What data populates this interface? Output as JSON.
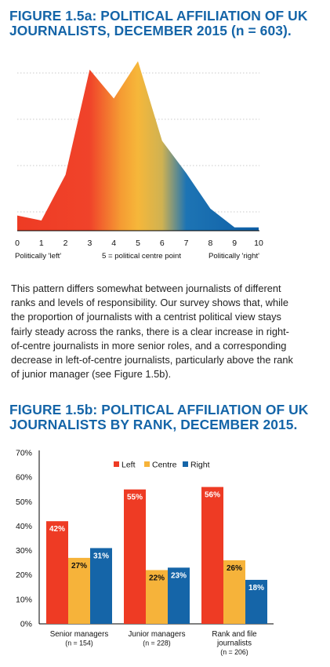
{
  "figure_a": {
    "title_lines": [
      "FIGURE 1.5a: POLITICAL AFFILIATION OF UK",
      "JOURNALISTS, DECEMBER 2015 (n = 603)."
    ],
    "axis_label_left": "Politically 'left'",
    "axis_label_centre": "5 = political centre point",
    "axis_label_right": "Politically 'right'",
    "colors": {
      "left": "#ee3b24",
      "centre": "#f6b33a",
      "right": "#1565a8"
    }
  },
  "paragraph_lines": [
    "This pattern differs somewhat between journalists of different",
    "ranks and levels of responsibility. Our survey shows that, while",
    "the proportion of journalists with a centrist political view stays",
    "fairly steady across the ranks, there is a clear increase in right-",
    "of-centre journalists in more senior roles, and a corresponding",
    "decrease in left-of-centre journalists, particularly above the rank",
    "of junior manager (see Figure 1.5b)."
  ],
  "figure_b": {
    "title_lines": [
      "FIGURE 1.5b: POLITICAL AFFILIATION OF UK",
      "JOURNALISTS BY RANK, DECEMBER 2015."
    ]
  },
  "chart_data": [
    {
      "type": "area",
      "title": "FIGURE 1.5a: POLITICAL AFFILIATION OF UK JOURNALISTS, DECEMBER 2015 (n = 603).",
      "x": [
        0,
        1,
        2,
        3,
        4,
        5,
        6,
        7,
        8,
        9,
        10
      ],
      "x_tick_labels": [
        "0",
        "1",
        "2",
        "3",
        "4",
        "5",
        "6",
        "7",
        "8",
        "9",
        "10"
      ],
      "y_relative": [
        0.09,
        0.06,
        0.33,
        0.95,
        0.78,
        1.0,
        0.53,
        0.34,
        0.13,
        0.02,
        0.02
      ],
      "y_axis_labels_shown": false,
      "grid": "horizontal dotted",
      "color_gradient": [
        "#ee3b24",
        "#f6b33a",
        "#1565a8"
      ]
    },
    {
      "type": "bar",
      "title": "FIGURE 1.5b: POLITICAL AFFILIATION OF UK JOURNALISTS BY RANK, DECEMBER 2015.",
      "categories": [
        [
          "Senior managers",
          "(n = 154)"
        ],
        [
          "Junior managers",
          "(n = 228)"
        ],
        [
          "Rank and file",
          "journalists",
          "(n = 206)"
        ]
      ],
      "series": [
        {
          "name": "Left",
          "color": "#ee3b24",
          "values": [
            42,
            55,
            56
          ],
          "labels": [
            "42%",
            "55%",
            "56%"
          ]
        },
        {
          "name": "Centre",
          "color": "#f6b33a",
          "values": [
            27,
            22,
            26
          ],
          "labels": [
            "27%",
            "22%",
            "26%"
          ]
        },
        {
          "name": "Right",
          "color": "#1565a8",
          "values": [
            31,
            23,
            18
          ],
          "labels": [
            "31%",
            "23%",
            "18%"
          ]
        }
      ],
      "y_ticks": [
        "0%",
        "10%",
        "20%",
        "30%",
        "40%",
        "50%",
        "60%",
        "70%"
      ],
      "ylim": [
        0,
        70
      ],
      "legend_position": "top",
      "grid": false
    }
  ]
}
